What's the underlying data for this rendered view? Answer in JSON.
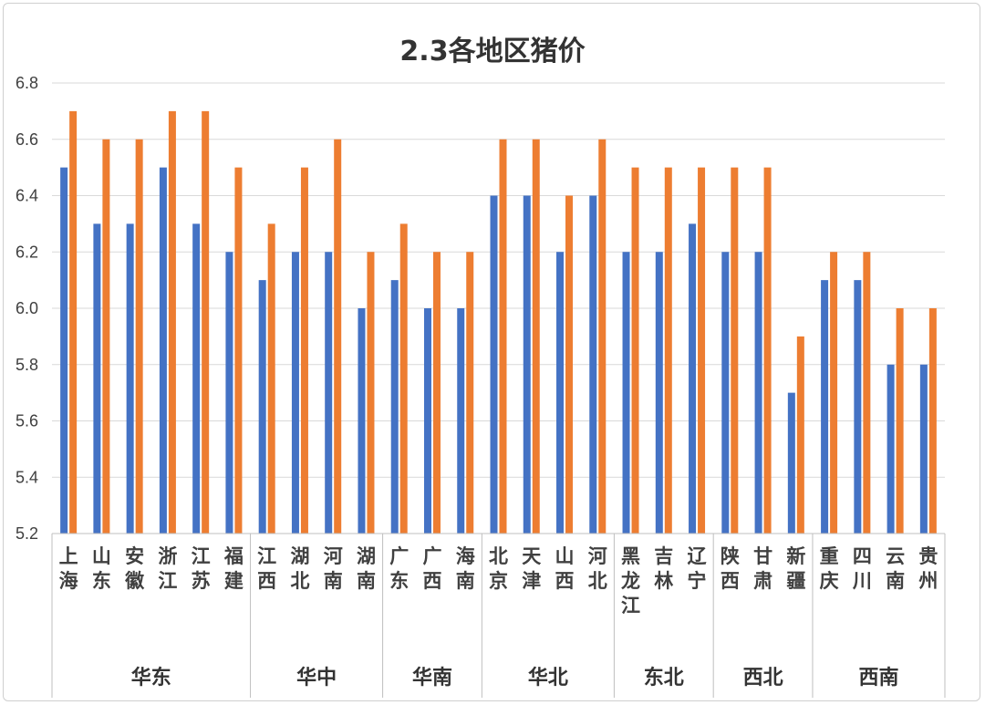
{
  "chart_data": {
    "type": "bar",
    "title": "2.3各地区猪价",
    "ylim": [
      5.2,
      6.8
    ],
    "yticks": [
      "5.2",
      "5.4",
      "5.6",
      "5.8",
      "6.0",
      "6.2",
      "6.4",
      "6.6",
      "6.8"
    ],
    "grid": true,
    "categories": [
      "上海",
      "山东",
      "安徽",
      "浙江",
      "江苏",
      "福建",
      "江西",
      "湖北",
      "河南",
      "湖南",
      "广东",
      "广西",
      "海南",
      "北京",
      "天津",
      "山西",
      "河北",
      "黑龙江",
      "吉林",
      "辽宁",
      "陕西",
      "甘肃",
      "新疆",
      "重庆",
      "四川",
      "云南",
      "贵州"
    ],
    "groups": [
      {
        "label": "华东",
        "count": 6
      },
      {
        "label": "华中",
        "count": 4
      },
      {
        "label": "华南",
        "count": 3
      },
      {
        "label": "华北",
        "count": 4
      },
      {
        "label": "东北",
        "count": 3
      },
      {
        "label": "西北",
        "count": 3
      },
      {
        "label": "西南",
        "count": 4
      }
    ],
    "series": [
      {
        "color": "#4472C4",
        "values": [
          6.5,
          6.3,
          6.3,
          6.5,
          6.3,
          6.2,
          6.1,
          6.2,
          6.2,
          6.0,
          6.1,
          6.0,
          6.0,
          6.4,
          6.4,
          6.2,
          6.4,
          6.2,
          6.2,
          6.3,
          6.2,
          6.2,
          5.7,
          6.1,
          6.1,
          5.8,
          5.8
        ]
      },
      {
        "color": "#ED7D31",
        "values": [
          6.7,
          6.6,
          6.6,
          6.7,
          6.7,
          6.5,
          6.3,
          6.5,
          6.6,
          6.2,
          6.3,
          6.2,
          6.2,
          6.6,
          6.6,
          6.4,
          6.6,
          6.5,
          6.5,
          6.5,
          6.5,
          6.5,
          5.9,
          6.2,
          6.2,
          6.0,
          6.0
        ]
      }
    ]
  }
}
